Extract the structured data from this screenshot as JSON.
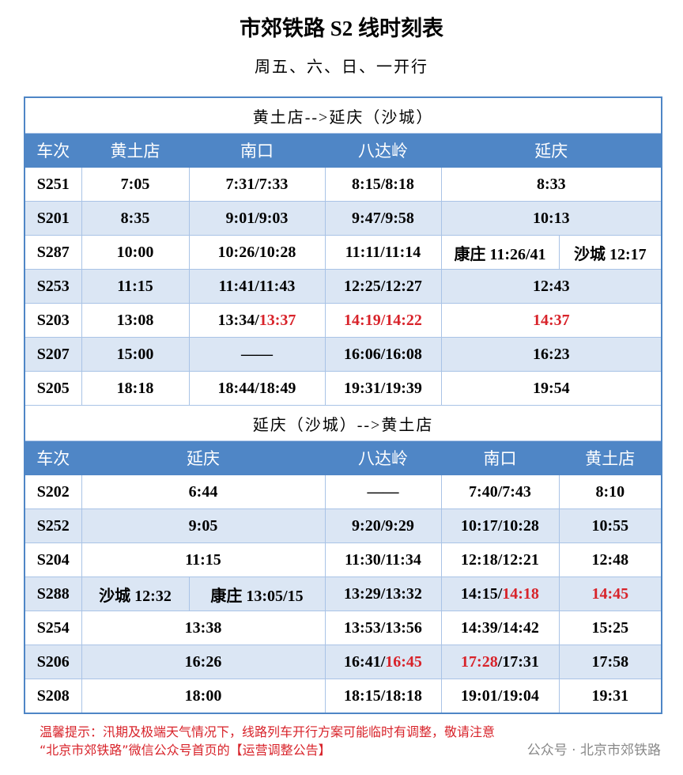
{
  "title": "市郊铁路 S2 线时刻表",
  "subtitle": "周五、六、日、一开行",
  "sections": [
    {
      "direction": "黄土店-->延庆（沙城）",
      "headers": [
        "车次",
        "黄土店",
        "南口",
        "八达岭",
        "延庆"
      ],
      "rows": [
        [
          "S251",
          "7:05",
          "7:31/7:33",
          "8:15/8:18",
          "8:33"
        ],
        [
          "S201",
          "8:35",
          "9:01/9:03",
          "9:47/9:58",
          "10:13"
        ],
        [
          "S287",
          "10:00",
          "10:26/10:28",
          "11:11/11:14",
          "康庄 11:26/41",
          "沙城 12:17"
        ],
        [
          "S253",
          "11:15",
          "11:41/11:43",
          "12:25/12:27",
          "12:43"
        ],
        [
          "S203",
          "13:08",
          [
            {
              "text": "13:34/"
            },
            {
              "text": "13:37",
              "color": "#d8232a"
            }
          ],
          {
            "text": "14:19/14:22",
            "color": "#d8232a"
          },
          {
            "text": "14:37",
            "color": "#d8232a"
          }
        ],
        [
          "S207",
          "15:00",
          "——",
          "16:06/16:08",
          "16:23"
        ],
        [
          "S205",
          "18:18",
          "18:44/18:49",
          "19:31/19:39",
          "19:54"
        ]
      ]
    },
    {
      "direction": "延庆（沙城）-->黄土店",
      "headers": [
        "车次",
        "延庆",
        "八达岭",
        "南口",
        "黄土店"
      ],
      "rows": [
        [
          "S202",
          "6:44",
          "——",
          "7:40/7:43",
          "8:10"
        ],
        [
          "S252",
          "9:05",
          "9:20/9:29",
          "10:17/10:28",
          "10:55"
        ],
        [
          "S204",
          "11:15",
          "11:30/11:34",
          "12:18/12:21",
          "12:48"
        ],
        [
          "S288",
          "沙城 12:32",
          "康庄 13:05/15",
          "13:29/13:32",
          [
            {
              "text": "14:15/"
            },
            {
              "text": "14:18",
              "color": "#d8232a"
            }
          ],
          {
            "text": "14:45",
            "color": "#d8232a"
          }
        ],
        [
          "S254",
          "13:38",
          "13:53/13:56",
          "14:39/14:42",
          "15:25"
        ],
        [
          "S206",
          "16:26",
          [
            {
              "text": "16:41/"
            },
            {
              "text": "16:45",
              "color": "#d8232a"
            }
          ],
          [
            {
              "text": "17:28",
              "color": "#d8232a"
            },
            {
              "text": "/17:31"
            }
          ],
          "17:58"
        ],
        [
          "S208",
          "18:00",
          "18:15/18:18",
          "19:01/19:04",
          "19:31"
        ]
      ]
    }
  ],
  "notice": [
    "温馨提示：汛期及极端天气情况下，线路列车开行方案可能临时有调整，敬请注意",
    "“北京市郊铁路”微信公众号首页的【运营调整公告】"
  ],
  "watermark": "公众号 · 北京市郊铁路"
}
